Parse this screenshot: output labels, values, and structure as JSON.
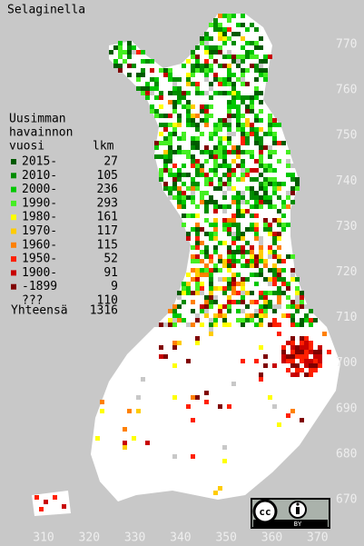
{
  "title": "Selaginella",
  "legend": {
    "heading": [
      "Uusimman",
      "havainnon"
    ],
    "col_headers": [
      "vuosi",
      "lkm"
    ],
    "items": [
      {
        "label": "2015-",
        "count": 27,
        "color": "#005a00"
      },
      {
        "label": "2010-",
        "count": 105,
        "color": "#008c00"
      },
      {
        "label": "2000-",
        "count": 236,
        "color": "#00c800"
      },
      {
        "label": "1990-",
        "count": 293,
        "color": "#44ee22"
      },
      {
        "label": "1980-",
        "count": 161,
        "color": "#ffff00"
      },
      {
        "label": "1970-",
        "count": 117,
        "color": "#ffcc00"
      },
      {
        "label": "1960-",
        "count": 115,
        "color": "#ff8000"
      },
      {
        "label": "1950-",
        "count": 52,
        "color": "#ff2000"
      },
      {
        "label": "1900-",
        "count": 91,
        "color": "#c80000"
      },
      {
        "label": "-1899",
        "count": 9,
        "color": "#800000"
      },
      {
        "label": "???",
        "count": 110,
        "color": "#c8c8c8"
      }
    ],
    "total_label": "Yhteensä",
    "total": 1316
  },
  "x_axis": {
    "ticks": [
      310,
      320,
      330,
      340,
      350,
      360,
      370
    ]
  },
  "y_axis": {
    "ticks": [
      670,
      680,
      690,
      700,
      710,
      720,
      730,
      740,
      750,
      760,
      770
    ]
  },
  "license_label": "BY"
}
